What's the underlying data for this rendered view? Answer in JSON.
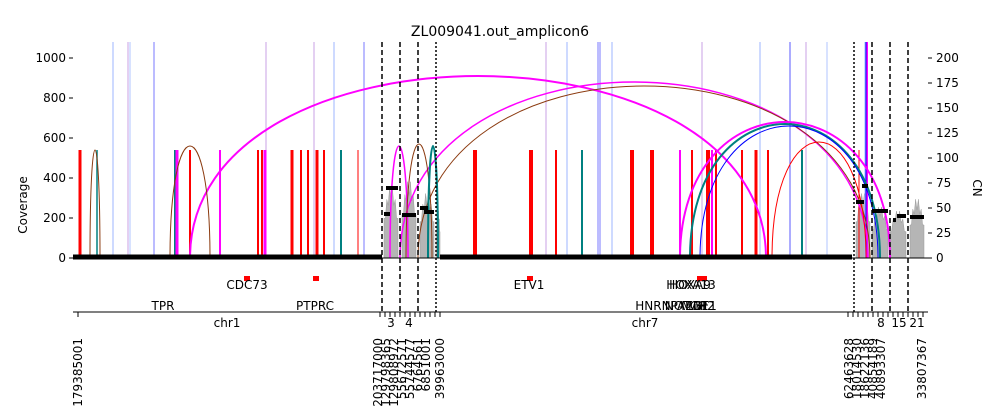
{
  "chart_data": {
    "type": "line",
    "title": "ZL009041.out_amplicon6",
    "ylabel_left": "Coverage",
    "ylabel_right": "CN",
    "ylim_left": [
      0,
      1080
    ],
    "ylim_right": [
      0,
      216
    ],
    "yticks_left": [
      "0",
      "200",
      "400",
      "600",
      "800",
      "1000"
    ],
    "yticks_right": [
      "0",
      "25",
      "50",
      "75",
      "100",
      "125",
      "150",
      "175",
      "200"
    ],
    "colors": {
      "cn_segment": "#000000",
      "coverage_fill": "#a9a9a9",
      "discordant_red": "#ff0000",
      "discordant_magenta": "#ff00ff",
      "discordant_brown": "#8b3a0f",
      "discordant_teal": "#008080",
      "discordant_blue": "#0000ff",
      "gene": "#ff0000"
    },
    "segments": [
      {
        "chrom": "chr1",
        "start_label": "179385001",
        "end_label": "203717000"
      },
      {
        "chrom": "3",
        "start_label": "129798365",
        "end_label": "129808972"
      },
      {
        "chrom": "4",
        "start_label": "55672571",
        "end_label": "55744577"
      },
      {
        "chrom": "",
        "start_label": "6764561",
        "end_label": "6851001"
      },
      {
        "chrom": "chr7",
        "start_label": "6851001",
        "end_label": "39963000"
      },
      {
        "chrom": "8",
        "start_label": "62463628",
        "end_label": "18014530"
      },
      {
        "chrom": "15",
        "start_label": "18622136",
        "end_label": "40854189"
      },
      {
        "chrom": "21",
        "start_label": "40893307",
        "end_label": "33807367"
      }
    ],
    "chrom_labels": [
      "chr1",
      "3",
      "4",
      "chr7",
      "8",
      "15",
      "21"
    ],
    "position_labels": [
      "179385001",
      "203717000",
      "129798365",
      "129808972",
      "55672571",
      "55744577",
      "6764561",
      "6851001",
      "39963000",
      "62463628",
      "18014530",
      "18622136",
      "40854189",
      "40893307",
      "33807367"
    ],
    "genes": [
      {
        "name": "CDC73",
        "row": 1
      },
      {
        "name": "TPR",
        "row": 2
      },
      {
        "name": "PTPRC",
        "row": 2
      },
      {
        "name": "ETV1",
        "row": 1
      },
      {
        "name": "HOXA13",
        "row": 1
      },
      {
        "name": "HOXA9",
        "row": 1
      },
      {
        "name": "HNRNPA2B1",
        "row": 2
      },
      {
        "name": "NOTCH",
        "row": 2
      },
      {
        "name": "MAP2",
        "row": 2
      },
      {
        "name": "EGF1",
        "row": 2
      }
    ],
    "cn_segments": [
      {
        "cn": 1
      },
      {
        "cn": 44
      },
      {
        "cn": 70
      },
      {
        "cn": 43
      },
      {
        "cn": 50
      },
      {
        "cn": 46
      },
      {
        "cn": 1
      },
      {
        "cn": 56
      },
      {
        "cn": 72
      },
      {
        "cn": 47
      },
      {
        "cn": 38
      },
      {
        "cn": 42
      },
      {
        "cn": 41
      }
    ],
    "grid": false,
    "legend": "none"
  }
}
